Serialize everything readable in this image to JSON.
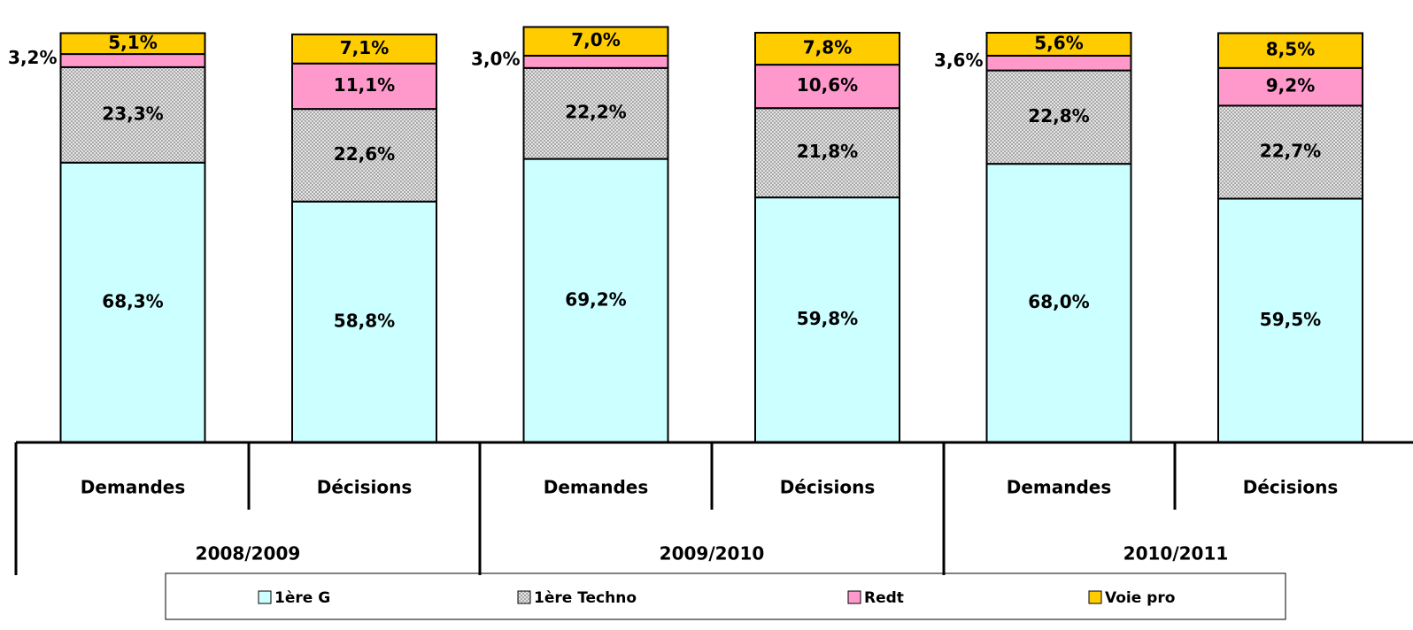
{
  "chart_data": {
    "type": "stacked-bar",
    "categories": [
      "Demandes",
      "Décisions",
      "Demandes",
      "Décisions",
      "Demandes",
      "Décisions"
    ],
    "groups": [
      "2008/2009",
      "2009/2010",
      "2010/2011"
    ],
    "series": [
      {
        "name": "1ère G",
        "color": "#ccffff",
        "values": [
          68.3,
          58.8,
          69.2,
          59.8,
          68.0,
          59.5
        ],
        "value_labels": [
          "68,3%",
          "58,8%",
          "69,2%",
          "59,8%",
          "68,0%",
          "59,5%"
        ]
      },
      {
        "name": "1ère Techno",
        "color": "#c8c8c8",
        "values": [
          23.3,
          22.6,
          22.2,
          21.8,
          22.8,
          22.7
        ],
        "value_labels": [
          "23,3%",
          "22,6%",
          "22,2%",
          "21,8%",
          "22,8%",
          "22,7%"
        ]
      },
      {
        "name": "Redt",
        "color": "#ff99cc",
        "values": [
          3.2,
          11.1,
          3.0,
          10.6,
          3.6,
          9.2
        ],
        "value_labels": [
          "3,2%",
          "11,1%",
          "3,0%",
          "10,6%",
          "3,6%",
          "9,2%"
        ]
      },
      {
        "name": "Voie pro",
        "color": "#ffcc00",
        "values": [
          5.1,
          7.1,
          7.0,
          7.8,
          5.6,
          8.5
        ],
        "value_labels": [
          "5,1%",
          "7,1%",
          "7,0%",
          "7,8%",
          "5,6%",
          "8,5%"
        ]
      }
    ]
  }
}
